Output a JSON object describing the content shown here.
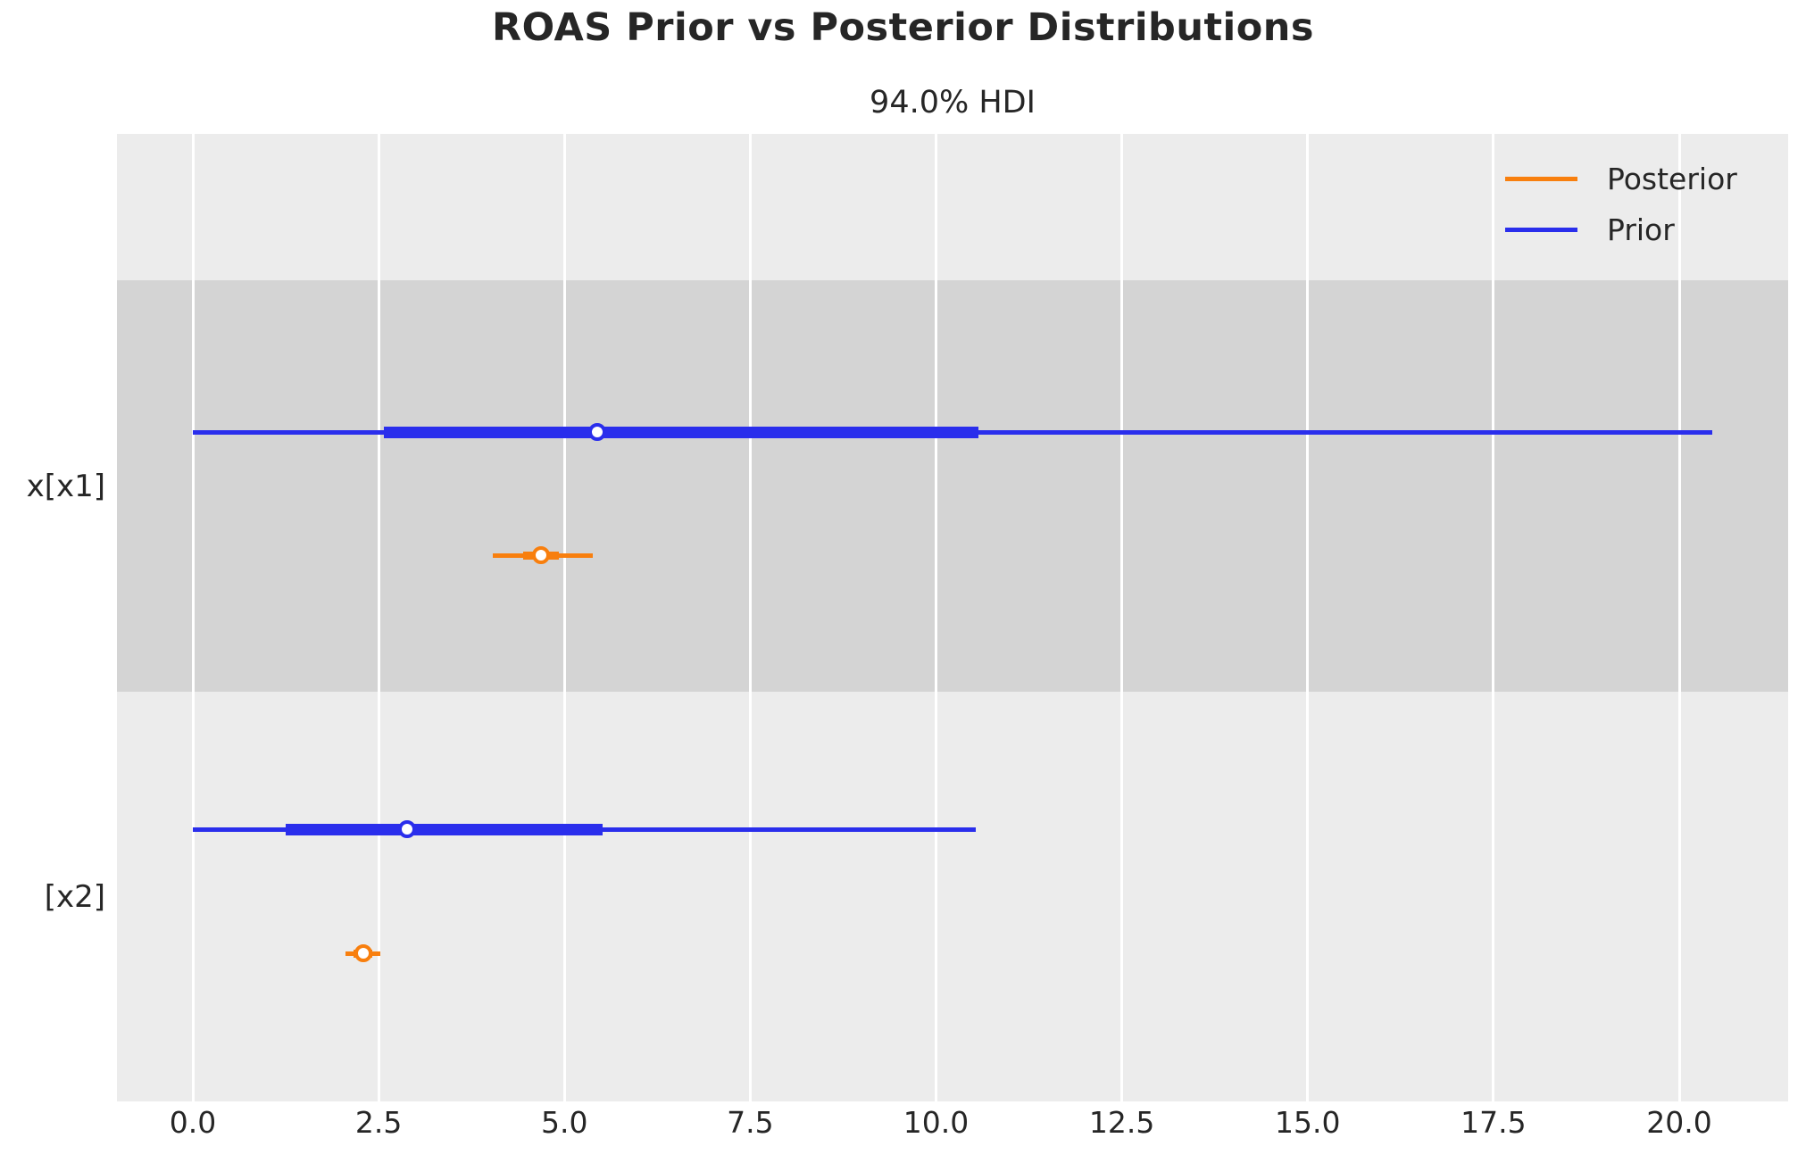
{
  "title": "ROAS Prior vs Posterior Distributions",
  "colors": {
    "posterior": "#f87f0e",
    "prior": "#2a2eec",
    "axes_bg": "#ececec",
    "band_shade": "#d4d4d4",
    "grid": "#ffffff",
    "text": "#262626",
    "figure_bg": "#ffffff"
  },
  "chart_data": {
    "type": "forest",
    "title": "ROAS Prior vs Posterior Distributions",
    "subtitle": "94.0% HDI",
    "hdi_prob": "94.0%",
    "xlabel": "",
    "ylabel": "",
    "xlim": [
      -1.0,
      21.5
    ],
    "grid": true,
    "legend_position": "top-right",
    "legend_labels": [
      "Posterior",
      "Prior"
    ],
    "xticks": [
      "0.0",
      "2.5",
      "5.0",
      "7.5",
      "10.0",
      "12.5",
      "15.0",
      "17.5",
      "20.0"
    ],
    "rows": [
      {
        "label": "x[x1]",
        "series": {
          "prior": {
            "hdi_low": 0.0,
            "iqr_low": 2.57,
            "median": 5.44,
            "iqr_high": 10.57,
            "hdi_high": 20.44
          },
          "posterior": {
            "hdi_low": 4.04,
            "iqr_low": 4.44,
            "median": 4.69,
            "iqr_high": 4.92,
            "hdi_high": 5.38
          }
        }
      },
      {
        "label": "[x2]",
        "series": {
          "prior": {
            "hdi_low": 0.0,
            "iqr_low": 1.25,
            "median": 2.88,
            "iqr_high": 5.51,
            "hdi_high": 10.54
          },
          "posterior": {
            "hdi_low": 2.06,
            "iqr_low": 2.16,
            "median": 2.29,
            "iqr_high": 2.42,
            "hdi_high": 2.52
          }
        }
      }
    ]
  }
}
